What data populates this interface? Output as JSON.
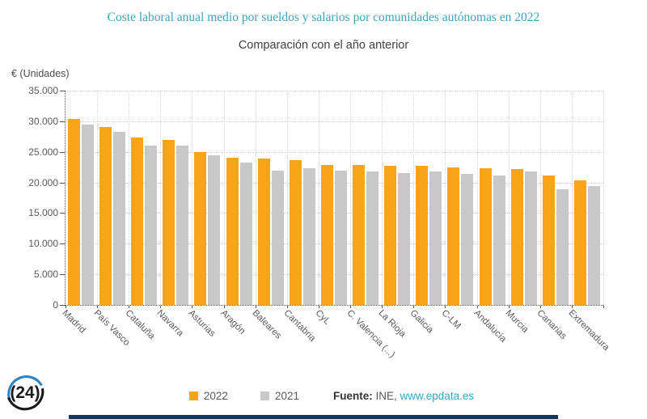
{
  "header": {
    "title": "Coste laboral anual medio por sueldos y salarios por comunidades autónomas en 2022",
    "subtitle": "Comparación con el año anterior"
  },
  "chart_data": {
    "type": "bar",
    "title": "Coste laboral anual medio por sueldos y salarios por comunidades autónomas en 2022",
    "subtitle": "Comparación con el año anterior",
    "ylabel": "€ (Unidades)",
    "xlabel": "",
    "ylim": [
      0,
      35000
    ],
    "ytick_step": 5000,
    "ytick_labels": [
      "0",
      "5.000",
      "10.000",
      "15.000",
      "20.000",
      "25.000",
      "30.000",
      "35.000"
    ],
    "grid": true,
    "legend_position": "bottom",
    "categories": [
      "Madrid",
      "País Vasco",
      "Cataluña",
      "Navarra",
      "Asturias",
      "Aragón",
      "Baleares",
      "Cantabria",
      "CyL",
      "C. Valencia (...)",
      "La Rioja",
      "Galicia",
      "C-LM",
      "Andalucía",
      "Murcia",
      "Canarias",
      "Extremadura"
    ],
    "series": [
      {
        "name": "2022",
        "color": "#F9A51A",
        "values": [
          30400,
          29100,
          27400,
          27000,
          25000,
          24100,
          23900,
          23600,
          22800,
          22800,
          22700,
          22700,
          22500,
          22300,
          22200,
          21100,
          20300
        ]
      },
      {
        "name": "2021",
        "color": "#C8C8C8",
        "values": [
          29400,
          28200,
          26000,
          26000,
          24400,
          23300,
          21900,
          22300,
          21900,
          21800,
          21500,
          21800,
          21400,
          21100,
          21800,
          18900,
          19400
        ]
      }
    ]
  },
  "legend": {
    "items": [
      {
        "label": "2022",
        "color": "#F9A51A"
      },
      {
        "label": "2021",
        "color": "#C8C8C8"
      }
    ]
  },
  "footer": {
    "source_label": "Fuente:",
    "source_name": "INE,",
    "source_link": "www.epdata.es",
    "logo_text": "24"
  },
  "colors": {
    "title": "#3AA5BE",
    "link": "#2FA8C5",
    "bottom_bar": "#16355D"
  }
}
